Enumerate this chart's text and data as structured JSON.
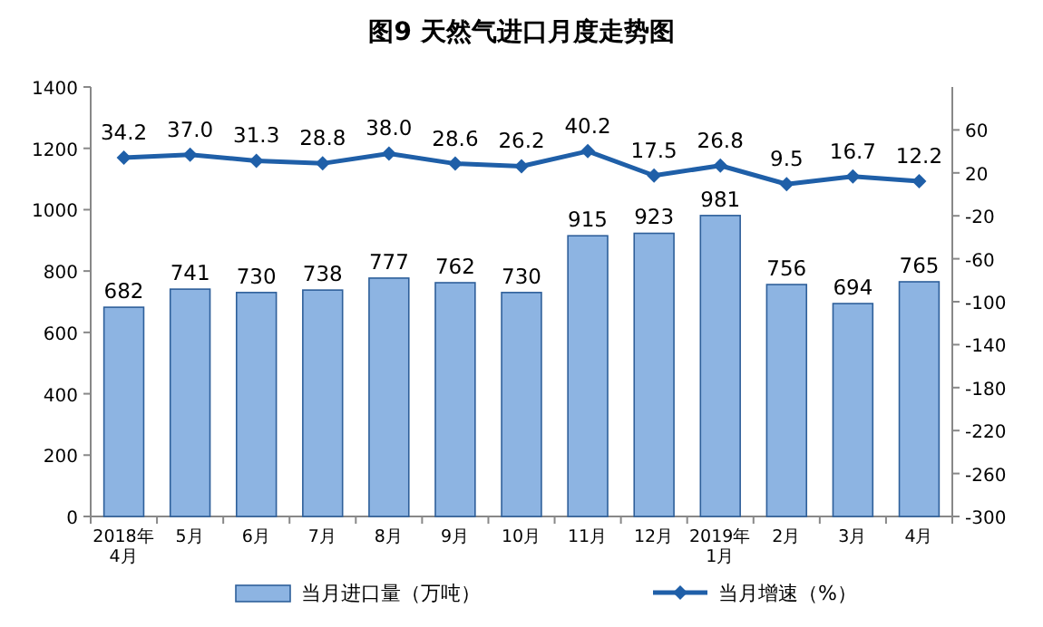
{
  "chart_data": {
    "type": "bar",
    "title": "图9  天然气进口月度走势图",
    "categories": [
      "2018年\n4月",
      "5月",
      "6月",
      "7月",
      "8月",
      "9月",
      "10月",
      "11月",
      "12月",
      "2019年\n1月",
      "2月",
      "3月",
      "4月"
    ],
    "series": [
      {
        "name": "当月进口量（万吨）",
        "color": "#8db4e2",
        "values": [
          682,
          741,
          730,
          738,
          777,
          762,
          730,
          915,
          923,
          981,
          756,
          694,
          765
        ],
        "value_labels": [
          "682",
          "741",
          "730",
          "738",
          "777",
          "762",
          "730",
          "915",
          "923",
          "981",
          "756",
          "694",
          "765"
        ]
      },
      {
        "name": "当月增速（%）",
        "type": "line",
        "axis": "y2",
        "color": "#1f5fa8",
        "values": [
          34.2,
          37.0,
          31.3,
          28.8,
          38.0,
          28.6,
          26.2,
          40.2,
          17.5,
          26.8,
          9.5,
          16.7,
          12.2
        ],
        "value_labels": [
          "34.2",
          "37.0",
          "31.3",
          "28.8",
          "38.0",
          "28.6",
          "26.2",
          "40.2",
          "17.5",
          "26.8",
          "9.5",
          "16.7",
          "12.2"
        ]
      }
    ],
    "ylim": [
      0,
      1400
    ],
    "yticks": [
      0,
      200,
      400,
      600,
      800,
      1000,
      1200,
      1400
    ],
    "y2lim": [
      -300,
      100
    ],
    "y2ticks": [
      -300,
      -260,
      -220,
      -180,
      -140,
      -100,
      -60,
      -20,
      20,
      60
    ],
    "marker": "diamond",
    "legend": "bottom",
    "grid": false
  }
}
